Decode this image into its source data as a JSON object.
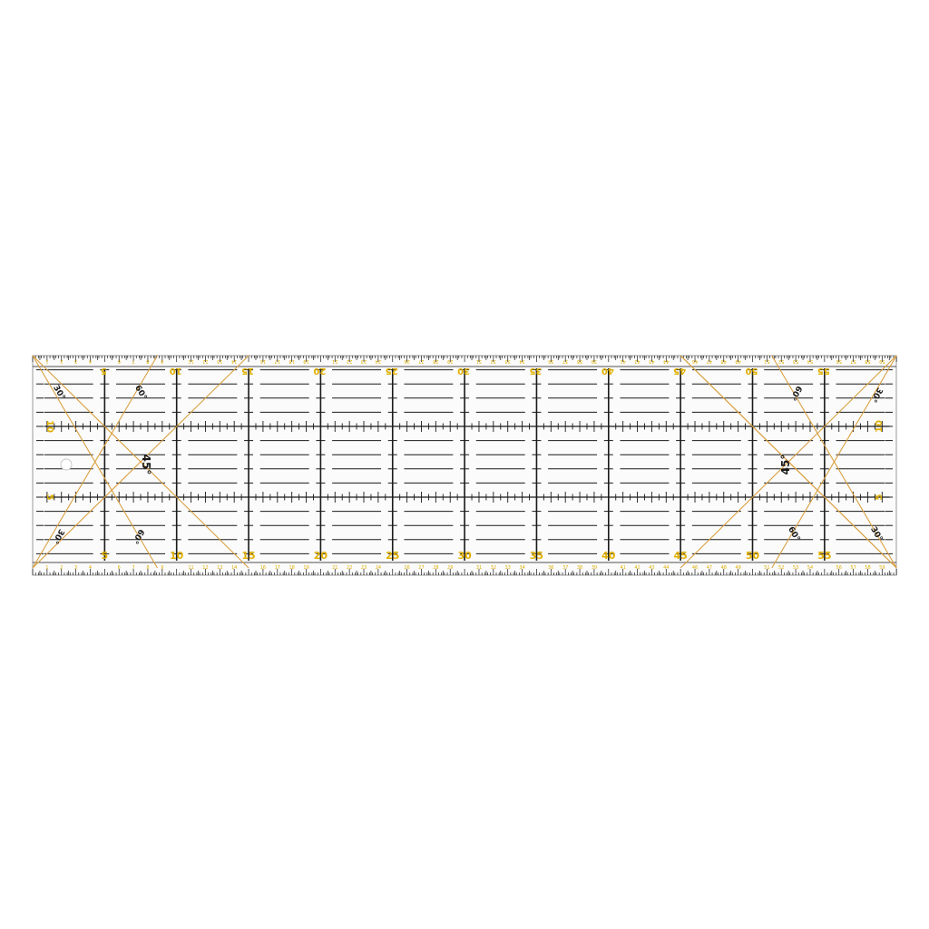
{
  "ruler": {
    "length_cm": 60,
    "width_cm": 15,
    "colors": {
      "ink": "#1a1a1a",
      "accent_text": "#e0b000",
      "angle_lines": "#d9a040",
      "body": "#fbfbfb",
      "edge": "#9a9a9a"
    },
    "major_labels": [
      "5",
      "10",
      "15",
      "20",
      "25",
      "30",
      "35",
      "40",
      "45",
      "50",
      "55"
    ],
    "side_labels": [
      "5",
      "10"
    ],
    "small_numbers": [
      "1",
      "2",
      "3",
      "4",
      "6",
      "7",
      "8",
      "9",
      "11",
      "12",
      "13",
      "14",
      "16",
      "17",
      "18",
      "19",
      "21",
      "22",
      "23",
      "24",
      "26",
      "27",
      "28",
      "29",
      "31",
      "32",
      "33",
      "34",
      "36",
      "37",
      "38",
      "39",
      "41",
      "42",
      "43",
      "44",
      "46",
      "47",
      "48",
      "49",
      "51",
      "52",
      "53",
      "54",
      "56",
      "57",
      "58",
      "59"
    ],
    "angle_labels": {
      "thirty": "30°",
      "forty_five": "45°",
      "sixty": "60°"
    }
  }
}
